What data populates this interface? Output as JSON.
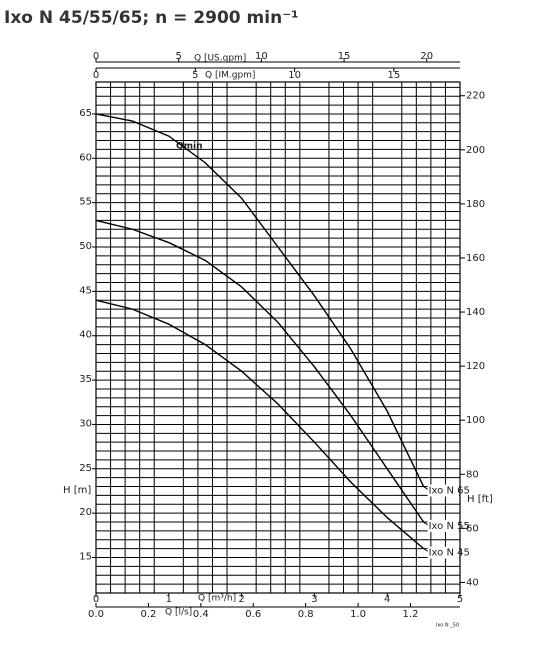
{
  "chart_data": {
    "type": "line",
    "title": "Ixo N 45/55/65; n = 2900 min⁻¹",
    "x_label": "Q [m³/h]",
    "y_label": "H [m]",
    "y2_label": "H [ft]",
    "xlim": [
      0,
      5
    ],
    "xticks": [
      0,
      1,
      2,
      3,
      4,
      5
    ],
    "ylim": [
      11,
      68.6
    ],
    "yticks": [
      15,
      20,
      25,
      30,
      35,
      40,
      45,
      50,
      55,
      60,
      65
    ],
    "y2lim": [
      36.09,
      225.08
    ],
    "y2ticks": [
      40,
      60,
      80,
      100,
      120,
      140,
      160,
      180,
      200,
      220
    ],
    "x_ls": {
      "label": "Q [l/s]",
      "xlim": [
        0,
        1.3889
      ],
      "xticks": [
        {
          "value": 0,
          "label": "0.0"
        },
        {
          "value": 0.2,
          "label": "0.2"
        },
        {
          "value": 0.4,
          "label": "0.4"
        },
        {
          "value": 0.6,
          "label": "0.6"
        },
        {
          "value": 0.8,
          "label": "0.8"
        },
        {
          "value": 1.0,
          "label": "1.0"
        },
        {
          "value": 1.2,
          "label": "1.2"
        }
      ]
    },
    "x_usgpm": {
      "label": "Q [US.gpm]",
      "xlim": [
        0,
        22.01
      ],
      "xticks": [
        0,
        5,
        10,
        15,
        20
      ]
    },
    "x_imgpm": {
      "label": "Q [IM.gpm]",
      "xlim": [
        0,
        18.33
      ],
      "xticks": [
        0,
        5,
        10,
        15
      ]
    },
    "grid": true,
    "x": [
      0,
      0.5,
      1,
      1.5,
      2,
      2.5,
      3,
      3.5,
      4,
      4.5
    ],
    "series": [
      {
        "name": "Ixo N 65",
        "color": "#000000",
        "values": [
          65,
          64.2,
          62.5,
          59.5,
          55.5,
          50,
          44.5,
          38.5,
          31.5,
          23
        ]
      },
      {
        "name": "Ixo N 55",
        "color": "#000000",
        "values": [
          53,
          52,
          50.5,
          48.5,
          45.5,
          41.5,
          36.5,
          31,
          25,
          19
        ]
      },
      {
        "name": "Ixo N 45",
        "color": "#000000",
        "values": [
          44,
          43,
          41.3,
          39,
          36,
          32.3,
          28,
          23.5,
          19.5,
          16
        ]
      }
    ],
    "annotation": "Qmin",
    "footnote": "Ixo N _50"
  }
}
